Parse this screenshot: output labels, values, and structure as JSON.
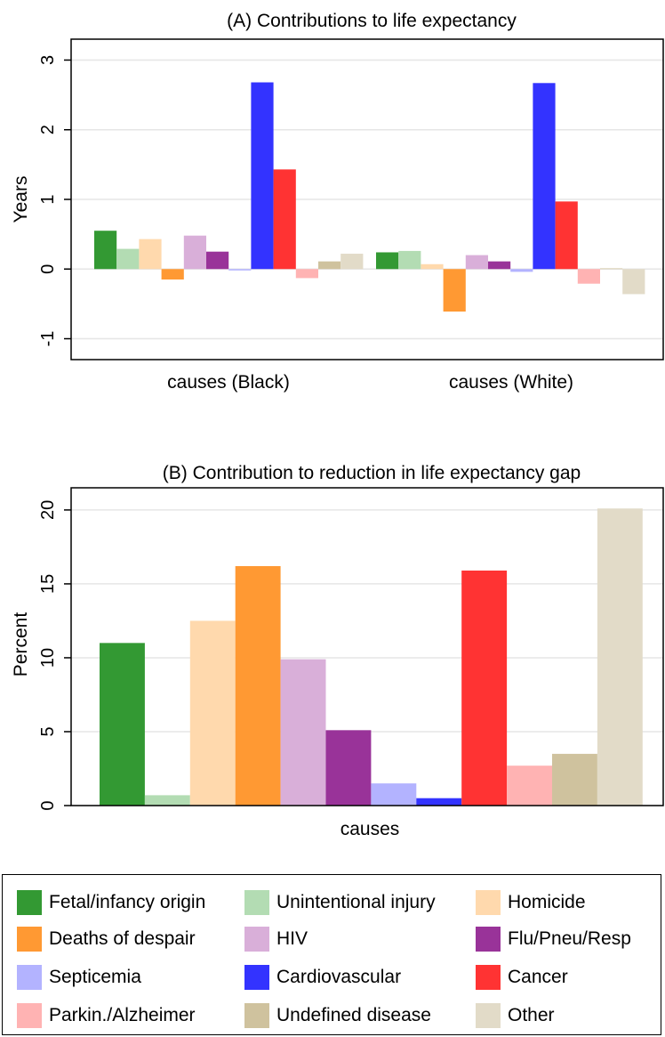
{
  "legend": {
    "items": [
      {
        "label": "Fetal/infancy origin",
        "color": "#339933"
      },
      {
        "label": "Unintentional injury",
        "color": "#b3dcb3"
      },
      {
        "label": "Homicide",
        "color": "#ffd9ad"
      },
      {
        "label": "Deaths of despair",
        "color": "#ff9933"
      },
      {
        "label": "HIV",
        "color": "#d9afd9"
      },
      {
        "label": "Flu/Pneu/Resp",
        "color": "#993399"
      },
      {
        "label": "Septicemia",
        "color": "#b3b3ff"
      },
      {
        "label": "Cardiovascular",
        "color": "#3333ff"
      },
      {
        "label": "Cancer",
        "color": "#ff3333"
      },
      {
        "label": "Parkin./Alzheimer",
        "color": "#ffb3b3"
      },
      {
        "label": "Undefined disease",
        "color": "#cfc29e"
      },
      {
        "label": "Other",
        "color": "#e2dbc8"
      }
    ]
  },
  "chart_data": [
    {
      "type": "bar",
      "title": "(A) Contributions to life expectancy",
      "xlabel": "",
      "ylabel": "Years",
      "ylim": [
        -1.3,
        3.3
      ],
      "yticks": [
        "-1",
        "0",
        "1",
        "2",
        "3"
      ],
      "grid": true,
      "categories": [
        "causes (Black)",
        "causes (White)"
      ],
      "series": [
        {
          "name": "Fetal/infancy origin",
          "values": [
            0.55,
            0.24
          ]
        },
        {
          "name": "Unintentional injury",
          "values": [
            0.29,
            0.26
          ]
        },
        {
          "name": "Homicide",
          "values": [
            0.43,
            0.07
          ]
        },
        {
          "name": "Deaths of despair",
          "values": [
            -0.15,
            -0.61
          ]
        },
        {
          "name": "HIV",
          "values": [
            0.48,
            0.2
          ]
        },
        {
          "name": "Flu/Pneu/Resp",
          "values": [
            0.25,
            0.11
          ]
        },
        {
          "name": "Septicemia",
          "values": [
            -0.02,
            -0.04
          ]
        },
        {
          "name": "Cardiovascular",
          "values": [
            2.68,
            2.67
          ]
        },
        {
          "name": "Cancer",
          "values": [
            1.43,
            0.97
          ]
        },
        {
          "name": "Parkin./Alzheimer",
          "values": [
            -0.13,
            -0.21
          ]
        },
        {
          "name": "Undefined disease",
          "values": [
            0.11,
            0.01
          ]
        },
        {
          "name": "Other",
          "values": [
            0.22,
            -0.36
          ]
        }
      ]
    },
    {
      "type": "bar",
      "title": "(B) Contribution to reduction in life expectancy gap",
      "xlabel": "causes",
      "ylabel": "Percent",
      "ylim": [
        0,
        21.5
      ],
      "yticks": [
        "0",
        "5",
        "10",
        "15",
        "20"
      ],
      "grid": true,
      "categories": [
        "causes"
      ],
      "series": [
        {
          "name": "Fetal/infancy origin",
          "values": [
            11.0
          ]
        },
        {
          "name": "Unintentional injury",
          "values": [
            0.7
          ]
        },
        {
          "name": "Homicide",
          "values": [
            12.5
          ]
        },
        {
          "name": "Deaths of despair",
          "values": [
            16.2
          ]
        },
        {
          "name": "HIV",
          "values": [
            9.9
          ]
        },
        {
          "name": "Flu/Pneu/Resp",
          "values": [
            5.1
          ]
        },
        {
          "name": "Septicemia",
          "values": [
            1.5
          ]
        },
        {
          "name": "Cardiovascular",
          "values": [
            0.5
          ]
        },
        {
          "name": "Cancer",
          "values": [
            15.9
          ]
        },
        {
          "name": "Parkin./Alzheimer",
          "values": [
            2.7
          ]
        },
        {
          "name": "Undefined disease",
          "values": [
            3.5
          ]
        },
        {
          "name": "Other",
          "values": [
            20.1
          ]
        }
      ]
    }
  ]
}
